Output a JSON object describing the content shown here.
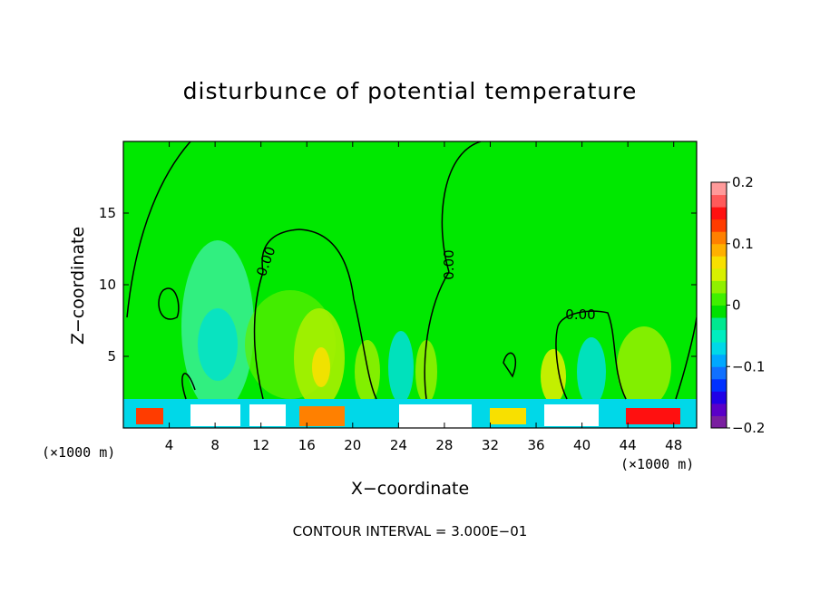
{
  "chart_data": {
    "type": "heatmap",
    "title": "disturbunce of potential temperature",
    "xlabel": "X−coordinate",
    "ylabel": "Z−coordinate",
    "x_unit": "(×1000 m)",
    "x_unit_right": "(×1000 m)",
    "xlim": [
      0,
      50
    ],
    "ylim": [
      0,
      20
    ],
    "x_ticks": [
      "4",
      "8",
      "12",
      "16",
      "20",
      "24",
      "28",
      "32",
      "36",
      "40",
      "44",
      "48"
    ],
    "y_ticks": [
      "5",
      "10",
      "15"
    ],
    "contour_labels": [
      "0.00",
      "0.00",
      "0.00"
    ],
    "colorbar": {
      "range": [
        -0.2,
        0.2
      ],
      "tick_labels": [
        "0.2",
        "0.1",
        "0",
        "−0.1",
        "−0.2"
      ],
      "colors": [
        "#7a1fa0",
        "#5a00c8",
        "#2000e6",
        "#0030ff",
        "#1070ff",
        "#00a8ff",
        "#00d8e8",
        "#00eec0",
        "#00e890",
        "#00e000",
        "#40f000",
        "#90f000",
        "#d8f000",
        "#f8e000",
        "#ffb000",
        "#ff8000",
        "#ff3c00",
        "#ff1010",
        "#ff5a5a",
        "#ff9a9a"
      ]
    },
    "footer": "CONTOUR INTERVAL = 3.000E−01"
  }
}
